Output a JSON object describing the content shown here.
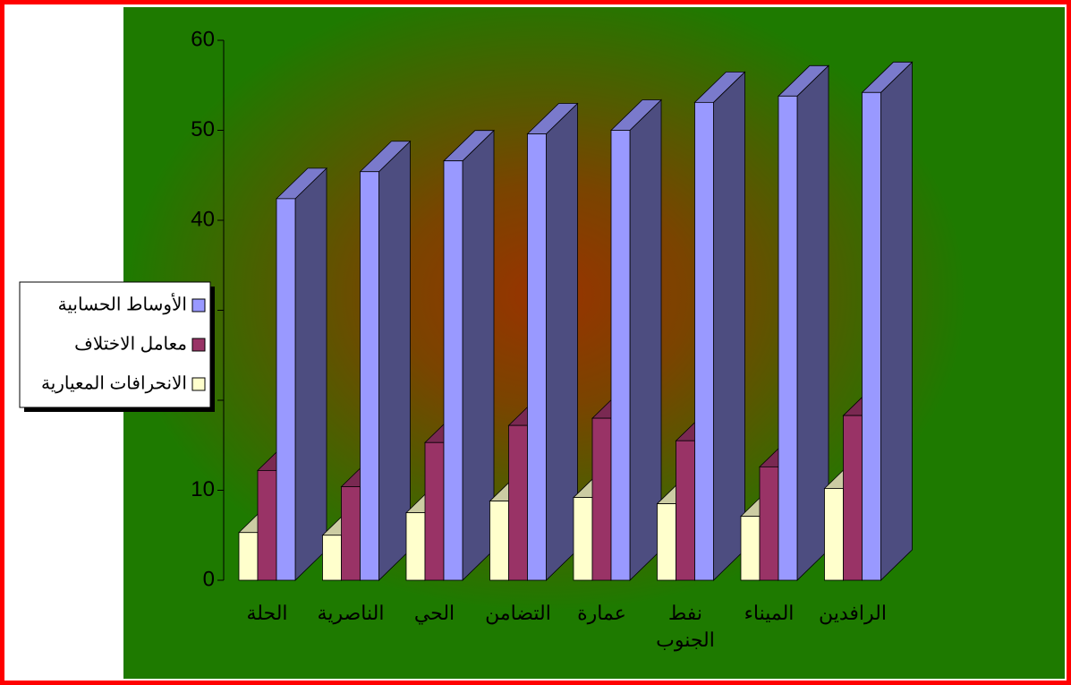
{
  "chart_data": {
    "type": "bar3d",
    "categories": [
      "الحلة",
      "الناصرية",
      "الحي",
      "التضامن",
      "عمارة",
      "نفط الجنوب",
      "الميناء",
      "الرافدين"
    ],
    "series": [
      {
        "name": "الانحرافات المعيارية",
        "color": "#ffffcc",
        "values": [
          5.3,
          5.0,
          7.5,
          8.8,
          9.2,
          8.5,
          7.1,
          10.2
        ]
      },
      {
        "name": "معامل الاختلاف",
        "color": "#993366",
        "values": [
          12.2,
          10.4,
          15.3,
          17.2,
          18.0,
          15.5,
          12.6,
          18.3
        ]
      },
      {
        "name": "الأوساط الحسابية",
        "color": "#9999ff",
        "values": [
          42.4,
          45.4,
          46.6,
          49.6,
          50.0,
          53.1,
          53.8,
          54.2
        ]
      }
    ],
    "ylim": [
      0,
      60
    ],
    "yticks": [
      0,
      10,
      20,
      30,
      40,
      50,
      60
    ]
  }
}
